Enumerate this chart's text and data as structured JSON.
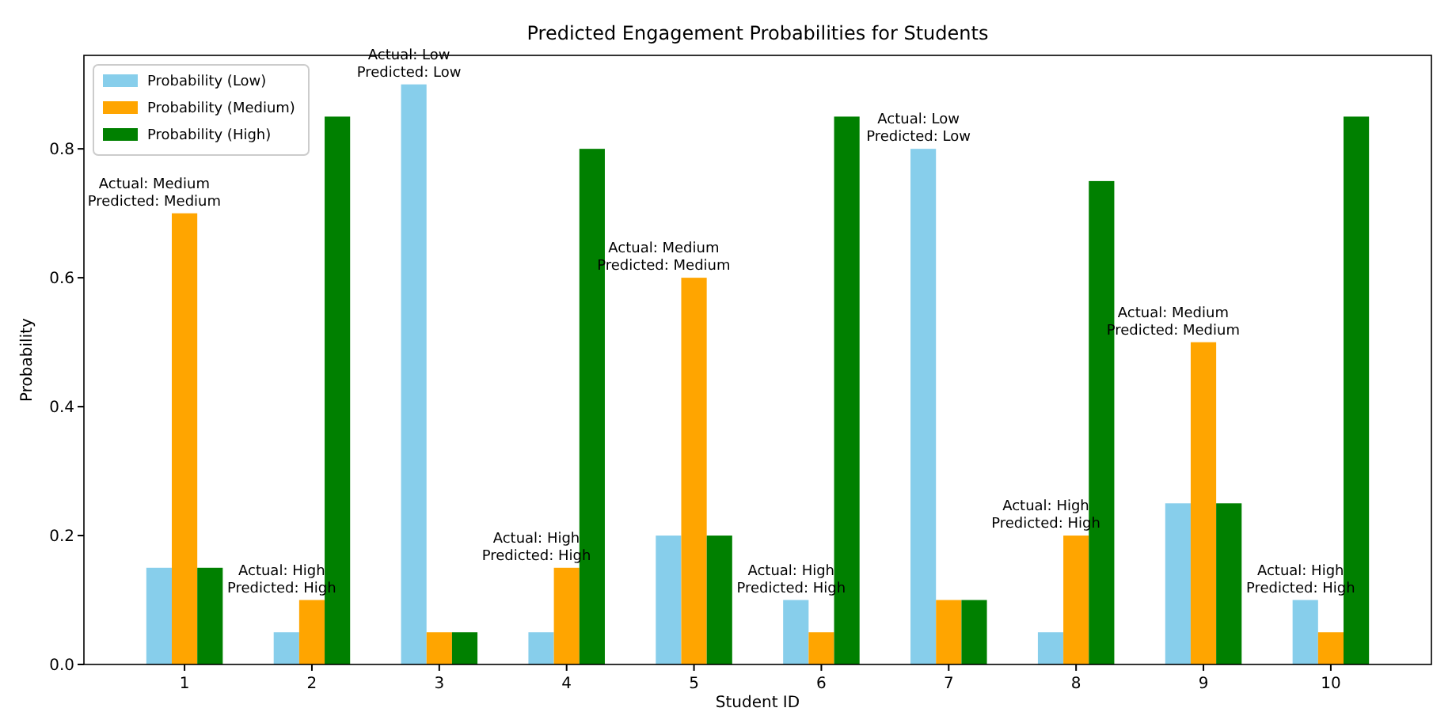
{
  "chart_data": {
    "type": "bar",
    "title": "Predicted Engagement Probabilities for Students",
    "xlabel": "Student ID",
    "ylabel": "Probability",
    "categories": [
      "1",
      "2",
      "3",
      "4",
      "5",
      "6",
      "7",
      "8",
      "9",
      "10"
    ],
    "series": [
      {
        "name": "Probability (Low)",
        "color": "#87ceeb",
        "values": [
          0.15,
          0.05,
          0.9,
          0.05,
          0.2,
          0.1,
          0.8,
          0.05,
          0.25,
          0.1
        ]
      },
      {
        "name": "Probability (Medium)",
        "color": "#ffa500",
        "values": [
          0.7,
          0.1,
          0.05,
          0.15,
          0.6,
          0.05,
          0.1,
          0.2,
          0.5,
          0.05
        ]
      },
      {
        "name": "Probability (High)",
        "color": "#008000",
        "values": [
          0.15,
          0.85,
          0.05,
          0.8,
          0.2,
          0.85,
          0.1,
          0.75,
          0.25,
          0.85
        ]
      }
    ],
    "ylim": [
      0,
      0.945
    ],
    "yticks": [
      {
        "value": 0,
        "label": "0.0"
      },
      {
        "value": 0.2,
        "label": "0.2"
      },
      {
        "value": 0.4,
        "label": "0.4"
      },
      {
        "value": 0.6,
        "label": "0.6"
      },
      {
        "value": 0.8,
        "label": "0.8"
      }
    ],
    "legend": "top left",
    "annotations": [
      "Actual: Medium\nPredicted: Medium",
      "Actual: High\nPredicted: High",
      "Actual: Low\nPredicted: Low",
      "Actual: High\nPredicted: High",
      "Actual: Medium\nPredicted: Medium",
      "Actual: High\nPredicted: High",
      "Actual: Low\nPredicted: Low",
      "Actual: High\nPredicted: High",
      "Actual: Medium\nPredicted: Medium",
      "Actual: High\nPredicted: High"
    ]
  }
}
